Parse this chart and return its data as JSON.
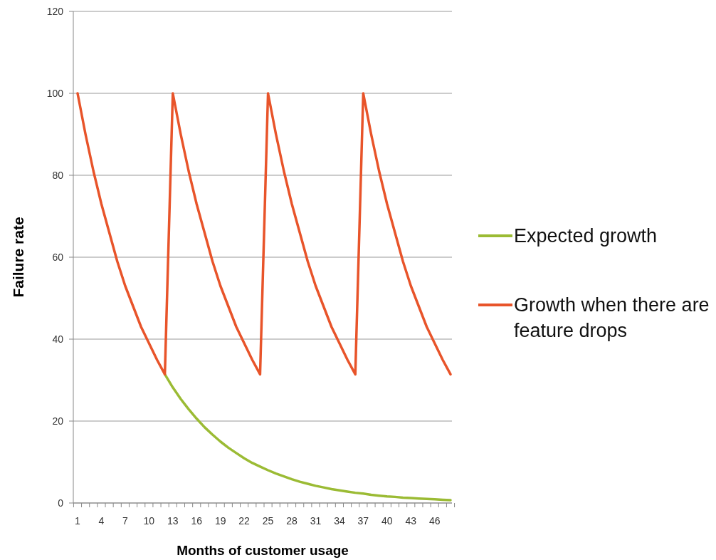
{
  "chart_data": {
    "type": "line",
    "xlabel": "Months of customer usage",
    "ylabel": "Failure rate",
    "categories": [
      "1",
      null,
      null,
      "4",
      null,
      null,
      "7",
      null,
      null,
      "10",
      null,
      null,
      "13",
      null,
      null,
      "16",
      null,
      null,
      "19",
      null,
      null,
      "22",
      null,
      null,
      "25",
      null,
      null,
      "28",
      null,
      null,
      "31",
      null,
      null,
      "34",
      null,
      null,
      "37",
      null,
      null,
      "40",
      null,
      null,
      "43",
      null,
      null,
      "46",
      null,
      null
    ],
    "series": [
      {
        "name": "Expected growth",
        "color": "#9bbb34",
        "values": [
          null,
          null,
          null,
          null,
          null,
          null,
          null,
          null,
          null,
          null,
          null,
          31.4,
          28.2,
          25.4,
          22.9,
          20.6,
          18.5,
          16.7,
          15.0,
          13.5,
          12.2,
          10.9,
          9.8,
          8.9,
          8.0,
          7.2,
          6.5,
          5.8,
          5.2,
          4.7,
          4.2,
          3.8,
          3.4,
          3.1,
          2.8,
          2.5,
          2.3,
          2.0,
          1.8,
          1.6,
          1.5,
          1.3,
          1.2,
          1.1,
          1.0,
          0.9,
          0.8,
          0.7
        ]
      },
      {
        "name": "Growth when there are feature drops",
        "color": "#e8542a",
        "values": [
          100,
          90,
          81,
          73,
          66,
          59,
          53,
          48,
          43,
          39,
          35,
          31.4,
          100,
          90,
          81,
          73,
          66,
          59,
          53,
          48,
          43,
          39,
          35,
          31.4,
          100,
          90,
          81,
          73,
          66,
          59,
          53,
          48,
          43,
          39,
          35,
          31.4,
          100,
          90,
          81,
          73,
          66,
          59,
          53,
          48,
          43,
          39,
          35,
          31.4
        ]
      }
    ],
    "ylim": [
      0,
      120
    ],
    "yticks": [
      0,
      20,
      40,
      60,
      80,
      100,
      120
    ],
    "grid": "y",
    "legend": "right",
    "marker": "none",
    "line_style": "solid"
  }
}
